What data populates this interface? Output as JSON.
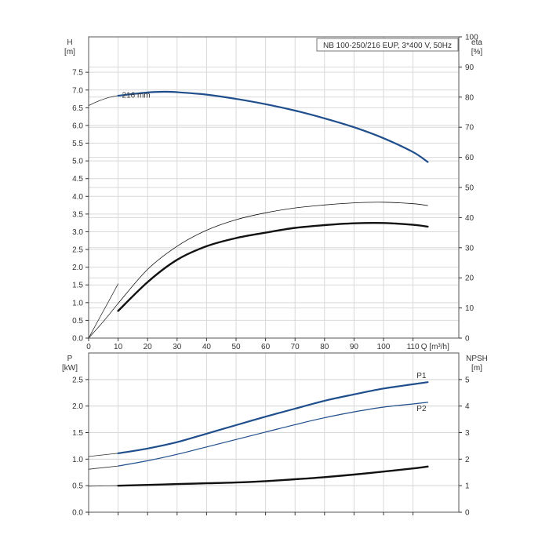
{
  "colors": {
    "blue": "#1f4e8c",
    "black": "#111111",
    "grid": "#d9d9d9",
    "thin_black": "#333333"
  },
  "chart_data": [
    {
      "type": "line",
      "title": "NB 100-250/216 EUP, 3*400 V, 50Hz",
      "xlabel": "Q [m³/h]",
      "ylabel_left": [
        "H",
        "[m]"
      ],
      "ylabel_right": [
        "eta",
        "[%]"
      ],
      "xlim": [
        0,
        120
      ],
      "ylim_left": [
        0,
        8.5
      ],
      "ylim_right": [
        0,
        100
      ],
      "x_ticks": [
        0,
        10,
        20,
        30,
        40,
        50,
        60,
        70,
        80,
        90,
        100,
        110
      ],
      "x_tick_labels": [
        "0",
        "10",
        "20",
        "30",
        "40",
        "50",
        "60",
        "70",
        "80",
        "90",
        "100",
        "110"
      ],
      "y_left_ticks": [
        0,
        0.5,
        1.0,
        1.5,
        2.0,
        2.5,
        3.0,
        3.5,
        4.0,
        4.5,
        5.0,
        5.5,
        6.0,
        6.5,
        7.0,
        7.5
      ],
      "y_left_tick_labels": [
        "0.0",
        "0.5",
        "1.0",
        "1.5",
        "2.0",
        "2.5",
        "3.0",
        "3.5",
        "4.0",
        "4.5",
        "5.0",
        "5.5",
        "6.0",
        "6.5",
        "7.0",
        "7.5"
      ],
      "y_right_ticks": [
        0,
        10,
        20,
        30,
        40,
        50,
        60,
        70,
        80,
        90,
        100
      ],
      "y_right_tick_labels": [
        "0",
        "10",
        "20",
        "30",
        "40",
        "50",
        "60",
        "70",
        "80",
        "90",
        "100"
      ],
      "grid": true,
      "annotations": [
        {
          "text": "216 mm",
          "x": 14.5,
          "y": 6.85
        }
      ],
      "series": [
        {
          "key": "H_ext",
          "axis": "left",
          "style": "thin",
          "color": "#333333",
          "x": [
            0,
            2,
            4,
            6,
            8,
            10
          ],
          "y": [
            6.56,
            6.64,
            6.71,
            6.77,
            6.81,
            6.84
          ]
        },
        {
          "key": "H",
          "axis": "left",
          "style": "blue-bold",
          "color": "#1f4e8c",
          "x": [
            10,
            20,
            26,
            30,
            40,
            50,
            60,
            70,
            80,
            90,
            100,
            110,
            115
          ],
          "y": [
            6.84,
            6.93,
            6.95,
            6.94,
            6.87,
            6.75,
            6.6,
            6.42,
            6.2,
            5.95,
            5.64,
            5.25,
            4.97
          ]
        },
        {
          "key": "eta_ext",
          "axis": "right",
          "style": "thin",
          "color": "#333333",
          "x": [
            0,
            5,
            10
          ],
          "y": [
            0,
            9,
            18
          ]
        },
        {
          "key": "eta_thin",
          "axis": "right",
          "style": "thin",
          "color": "#111111",
          "x": [
            10,
            20,
            30,
            40,
            50,
            60,
            70,
            80,
            90,
            100,
            110,
            115
          ],
          "y": [
            11.5,
            22.8,
            30.5,
            35.8,
            39.3,
            41.6,
            43.2,
            44.2,
            44.9,
            45.1,
            44.6,
            44.0
          ]
        },
        {
          "key": "eta_ext2",
          "axis": "right",
          "style": "thin",
          "color": "#333333",
          "x": [
            0,
            5,
            10
          ],
          "y": [
            0,
            5.5,
            11.5
          ]
        },
        {
          "key": "eta_bold",
          "axis": "right",
          "style": "black-bold",
          "color": "#111111",
          "x": [
            10,
            20,
            30,
            40,
            50,
            60,
            70,
            80,
            90,
            100,
            110,
            115
          ],
          "y": [
            9.0,
            18.6,
            26.0,
            30.5,
            33.2,
            35.0,
            36.6,
            37.5,
            38.1,
            38.2,
            37.6,
            37.0
          ]
        }
      ]
    },
    {
      "type": "line",
      "ylabel_left": [
        "P",
        "[kW]"
      ],
      "ylabel_right": [
        "NPSH",
        "[m]"
      ],
      "xlim": [
        0,
        120
      ],
      "ylim_left": [
        0,
        3.0
      ],
      "ylim_right": [
        0,
        6
      ],
      "y_left_ticks": [
        0,
        0.5,
        1.0,
        1.5,
        2.0,
        2.5
      ],
      "y_left_tick_labels": [
        "0.0",
        "0.5",
        "1.0",
        "1.5",
        "2.0",
        "2.5"
      ],
      "y_right_ticks": [
        0,
        1,
        2,
        3,
        4,
        5
      ],
      "y_right_tick_labels": [
        "0",
        "1",
        "2",
        "3",
        "4",
        "5"
      ],
      "grid": true,
      "series": [
        {
          "key": "P1_ext",
          "axis": "left",
          "style": "thin",
          "color": "#333333",
          "x": [
            0,
            5,
            10
          ],
          "y": [
            1.05,
            1.08,
            1.11
          ]
        },
        {
          "key": "P1",
          "name": "P1",
          "axis": "left",
          "style": "blue-bold",
          "color": "#1f4e8c",
          "x": [
            10,
            20,
            30,
            40,
            50,
            60,
            70,
            80,
            90,
            100,
            110,
            115
          ],
          "y": [
            1.11,
            1.2,
            1.32,
            1.48,
            1.64,
            1.8,
            1.95,
            2.1,
            2.22,
            2.33,
            2.41,
            2.45
          ]
        },
        {
          "key": "P2_ext",
          "axis": "left",
          "style": "thin",
          "color": "#333333",
          "x": [
            0,
            5,
            10
          ],
          "y": [
            0.81,
            0.84,
            0.87
          ]
        },
        {
          "key": "P2",
          "name": "P2",
          "axis": "left",
          "style": "blue-thin",
          "color": "#1f4e8c",
          "x": [
            10,
            20,
            30,
            40,
            50,
            60,
            70,
            80,
            90,
            100,
            110,
            115
          ],
          "y": [
            0.87,
            0.97,
            1.09,
            1.23,
            1.37,
            1.51,
            1.65,
            1.78,
            1.89,
            1.98,
            2.04,
            2.07
          ]
        },
        {
          "key": "NPSH_ext",
          "axis": "right",
          "style": "thin",
          "color": "#333333",
          "x": [
            0,
            5,
            10
          ],
          "y": [
            0.98,
            0.99,
            1.0
          ]
        },
        {
          "key": "NPSH",
          "axis": "right",
          "style": "black-bold",
          "color": "#111111",
          "x": [
            10,
            20,
            30,
            40,
            50,
            60,
            70,
            80,
            90,
            100,
            110,
            115
          ],
          "y": [
            1.0,
            1.03,
            1.06,
            1.09,
            1.12,
            1.17,
            1.24,
            1.32,
            1.42,
            1.53,
            1.65,
            1.72
          ]
        }
      ]
    }
  ]
}
